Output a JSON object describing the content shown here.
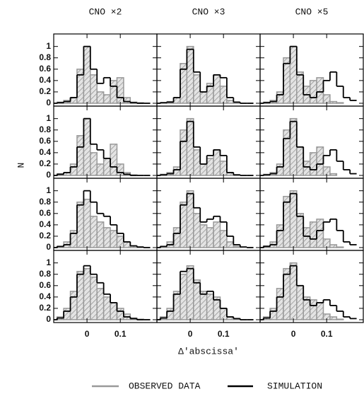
{
  "chart_data": [
    {
      "type": "histogram",
      "title": "CNO ×2",
      "bins": [
        -0.11,
        -0.09,
        -0.07,
        -0.05,
        -0.03,
        -0.01,
        0.01,
        0.03,
        0.05,
        0.07,
        0.09,
        0.11,
        0.13,
        0.15,
        0.17,
        0.19
      ],
      "series": [
        {
          "name": "OBSERVED DATA",
          "color": "#999999",
          "values": [
            0,
            0.02,
            0.05,
            0.1,
            0.6,
            1,
            0.5,
            0.2,
            0.15,
            0.4,
            0.45,
            0.1,
            0.02,
            0.01,
            0
          ]
        },
        {
          "name": "SIMULATION",
          "color": "#000000",
          "values": [
            0,
            0.01,
            0.03,
            0.1,
            0.5,
            1,
            0.6,
            0.35,
            0.45,
            0.3,
            0.1,
            0.03,
            0.01,
            0,
            0
          ]
        }
      ],
      "xlim": [
        -0.1,
        0.21
      ],
      "ylim": [
        -0.05,
        1.22
      ],
      "xticks": [
        0,
        0.1
      ],
      "yticks": [
        0,
        0.2,
        0.4,
        0.6,
        0.8,
        1
      ]
    },
    {
      "type": "histogram",
      "title": "CNO ×3",
      "bins": [
        -0.11,
        -0.09,
        -0.07,
        -0.05,
        -0.03,
        -0.01,
        0.01,
        0.03,
        0.05,
        0.07,
        0.09,
        0.11,
        0.13,
        0.15,
        0.17,
        0.19
      ],
      "series": [
        {
          "name": "OBSERVED DATA",
          "color": "#999999",
          "values": [
            0,
            0.01,
            0.03,
            0.1,
            0.7,
            1,
            0.5,
            0.2,
            0.35,
            0.5,
            0.3,
            0.05,
            0.01,
            0,
            0
          ]
        },
        {
          "name": "SIMULATION",
          "color": "#000000",
          "values": [
            0,
            0.01,
            0.02,
            0.1,
            0.6,
            0.95,
            0.55,
            0.2,
            0.3,
            0.5,
            0.45,
            0.1,
            0.02,
            0,
            0
          ]
        }
      ],
      "xlim": [
        -0.1,
        0.21
      ],
      "ylim": [
        -0.05,
        1.22
      ],
      "xticks": [
        0,
        0.1
      ],
      "yticks": [
        0,
        0.2,
        0.4,
        0.6,
        0.8,
        1
      ]
    },
    {
      "type": "histogram",
      "title": "CNO ×5",
      "bins": [
        -0.11,
        -0.09,
        -0.07,
        -0.05,
        -0.03,
        -0.01,
        0.01,
        0.03,
        0.05,
        0.07,
        0.09,
        0.11,
        0.13,
        0.15,
        0.17,
        0.19
      ],
      "series": [
        {
          "name": "OBSERVED DATA",
          "color": "#999999",
          "values": [
            0,
            0.02,
            0.05,
            0.2,
            0.8,
            1,
            0.55,
            0.3,
            0.4,
            0.45,
            0.15,
            0.03,
            0.01,
            0,
            0
          ]
        },
        {
          "name": "SIMULATION",
          "color": "#000000",
          "values": [
            0,
            0.01,
            0.03,
            0.15,
            0.7,
            1,
            0.5,
            0.15,
            0.1,
            0.2,
            0.4,
            0.55,
            0.3,
            0.1,
            0.05
          ]
        }
      ],
      "xlim": [
        -0.1,
        0.21
      ],
      "ylim": [
        -0.05,
        1.22
      ],
      "xticks": [
        0,
        0.1
      ],
      "yticks": [
        0,
        0.2,
        0.4,
        0.6,
        0.8,
        1
      ]
    },
    {
      "type": "histogram",
      "ylabel": "N",
      "bins": [
        -0.11,
        -0.09,
        -0.07,
        -0.05,
        -0.03,
        -0.01,
        0.01,
        0.03,
        0.05,
        0.07,
        0.09,
        0.11,
        0.13,
        0.15,
        0.17,
        0.19
      ],
      "series": [
        {
          "name": "OBSERVED DATA",
          "color": "#999999",
          "values": [
            0,
            0.03,
            0.05,
            0.2,
            0.7,
            1,
            0.4,
            0.2,
            0.3,
            0.55,
            0.2,
            0.05,
            0.01,
            0,
            0
          ]
        },
        {
          "name": "SIMULATION",
          "color": "#000000",
          "values": [
            0,
            0.02,
            0.05,
            0.15,
            0.5,
            1,
            0.55,
            0.45,
            0.3,
            0.15,
            0.05,
            0.02,
            0,
            0,
            0
          ]
        }
      ],
      "xlim": [
        -0.1,
        0.21
      ],
      "ylim": [
        -0.05,
        1.22
      ],
      "xticks": [
        0,
        0.1
      ],
      "yticks": [
        0,
        0.2,
        0.4,
        0.6,
        0.8,
        1
      ]
    },
    {
      "type": "histogram",
      "bins": [
        -0.11,
        -0.09,
        -0.07,
        -0.05,
        -0.03,
        -0.01,
        0.01,
        0.03,
        0.05,
        0.07,
        0.09,
        0.11,
        0.13,
        0.15,
        0.17,
        0.19
      ],
      "series": [
        {
          "name": "OBSERVED DATA",
          "color": "#999999",
          "values": [
            0,
            0.02,
            0.05,
            0.15,
            0.8,
            1,
            0.45,
            0.2,
            0.3,
            0.45,
            0.25,
            0.05,
            0.01,
            0,
            0
          ]
        },
        {
          "name": "SIMULATION",
          "color": "#000000",
          "values": [
            0,
            0.01,
            0.03,
            0.1,
            0.6,
            0.95,
            0.5,
            0.2,
            0.35,
            0.45,
            0.35,
            0.05,
            0.01,
            0,
            0
          ]
        }
      ],
      "xlim": [
        -0.1,
        0.21
      ],
      "ylim": [
        -0.05,
        1.22
      ],
      "xticks": [
        0,
        0.1
      ],
      "yticks": [
        0,
        0.2,
        0.4,
        0.6,
        0.8,
        1
      ]
    },
    {
      "type": "histogram",
      "bins": [
        -0.11,
        -0.09,
        -0.07,
        -0.05,
        -0.03,
        -0.01,
        0.01,
        0.03,
        0.05,
        0.07,
        0.09,
        0.11,
        0.13,
        0.15,
        0.17,
        0.19
      ],
      "series": [
        {
          "name": "OBSERVED DATA",
          "color": "#999999",
          "values": [
            0,
            0.02,
            0.05,
            0.2,
            0.8,
            1,
            0.5,
            0.25,
            0.4,
            0.5,
            0.15,
            0.03,
            0,
            0,
            0
          ]
        },
        {
          "name": "SIMULATION",
          "color": "#000000",
          "values": [
            0,
            0.01,
            0.03,
            0.15,
            0.65,
            0.95,
            0.5,
            0.15,
            0.1,
            0.2,
            0.35,
            0.45,
            0.25,
            0.1,
            0.03
          ]
        }
      ],
      "xlim": [
        -0.1,
        0.21
      ],
      "ylim": [
        -0.05,
        1.22
      ],
      "xticks": [
        0,
        0.1
      ],
      "yticks": [
        0,
        0.2,
        0.4,
        0.6,
        0.8,
        1
      ]
    },
    {
      "type": "histogram",
      "bins": [
        -0.11,
        -0.09,
        -0.07,
        -0.05,
        -0.03,
        -0.01,
        0.01,
        0.03,
        0.05,
        0.07,
        0.09,
        0.11,
        0.13,
        0.15,
        0.17,
        0.19
      ],
      "series": [
        {
          "name": "OBSERVED DATA",
          "color": "#999999",
          "values": [
            0,
            0.02,
            0.1,
            0.3,
            0.8,
            0.85,
            0.55,
            0.45,
            0.35,
            0.3,
            0.2,
            0.1,
            0.03,
            0.01,
            0
          ]
        },
        {
          "name": "SIMULATION",
          "color": "#000000",
          "values": [
            0,
            0.02,
            0.05,
            0.25,
            0.75,
            1,
            0.8,
            0.6,
            0.55,
            0.4,
            0.25,
            0.1,
            0.03,
            0.01,
            0
          ]
        }
      ],
      "xlim": [
        -0.1,
        0.21
      ],
      "ylim": [
        -0.05,
        1.22
      ],
      "xticks": [
        0,
        0.1
      ],
      "yticks": [
        0,
        0.2,
        0.4,
        0.6,
        0.8,
        1
      ]
    },
    {
      "type": "histogram",
      "bins": [
        -0.11,
        -0.09,
        -0.07,
        -0.05,
        -0.03,
        -0.01,
        0.01,
        0.03,
        0.05,
        0.07,
        0.09,
        0.11,
        0.13,
        0.15,
        0.17,
        0.19
      ],
      "series": [
        {
          "name": "OBSERVED DATA",
          "color": "#999999",
          "values": [
            0,
            0.02,
            0.1,
            0.35,
            0.8,
            1,
            0.6,
            0.4,
            0.35,
            0.45,
            0.3,
            0.1,
            0.02,
            0,
            0
          ]
        },
        {
          "name": "SIMULATION",
          "color": "#000000",
          "values": [
            0,
            0.02,
            0.05,
            0.25,
            0.75,
            0.95,
            0.7,
            0.45,
            0.5,
            0.55,
            0.45,
            0.2,
            0.05,
            0.01,
            0
          ]
        }
      ],
      "xlim": [
        -0.1,
        0.21
      ],
      "ylim": [
        -0.05,
        1.22
      ],
      "xticks": [
        0,
        0.1
      ],
      "yticks": [
        0,
        0.2,
        0.4,
        0.6,
        0.8,
        1
      ]
    },
    {
      "type": "histogram",
      "bins": [
        -0.11,
        -0.09,
        -0.07,
        -0.05,
        -0.03,
        -0.01,
        0.01,
        0.03,
        0.05,
        0.07,
        0.09,
        0.11,
        0.13,
        0.15,
        0.17,
        0.19
      ],
      "series": [
        {
          "name": "OBSERVED DATA",
          "color": "#999999",
          "values": [
            0,
            0.03,
            0.1,
            0.4,
            0.9,
            1,
            0.6,
            0.35,
            0.45,
            0.5,
            0.15,
            0.05,
            0.01,
            0,
            0
          ]
        },
        {
          "name": "SIMULATION",
          "color": "#000000",
          "values": [
            0,
            0.02,
            0.05,
            0.3,
            0.8,
            0.95,
            0.55,
            0.2,
            0.15,
            0.3,
            0.45,
            0.5,
            0.3,
            0.1,
            0.05
          ]
        }
      ],
      "xlim": [
        -0.1,
        0.21
      ],
      "ylim": [
        -0.05,
        1.22
      ],
      "xticks": [
        0,
        0.1
      ],
      "yticks": [
        0,
        0.2,
        0.4,
        0.6,
        0.8,
        1
      ]
    },
    {
      "type": "histogram",
      "bins": [
        -0.11,
        -0.09,
        -0.07,
        -0.05,
        -0.03,
        -0.01,
        0.01,
        0.03,
        0.05,
        0.07,
        0.09,
        0.11,
        0.13,
        0.15,
        0.17,
        0.19
      ],
      "series": [
        {
          "name": "OBSERVED DATA",
          "color": "#999999",
          "values": [
            0,
            0.05,
            0.2,
            0.5,
            0.85,
            0.9,
            0.75,
            0.55,
            0.4,
            0.3,
            0.2,
            0.1,
            0.03,
            0.01,
            0
          ]
        },
        {
          "name": "SIMULATION",
          "color": "#000000",
          "values": [
            0,
            0.03,
            0.15,
            0.4,
            0.8,
            0.95,
            0.8,
            0.65,
            0.45,
            0.3,
            0.15,
            0.05,
            0.02,
            0,
            0
          ]
        }
      ],
      "xlim": [
        -0.1,
        0.21
      ],
      "ylim": [
        -0.05,
        1.22
      ],
      "xticks": [
        0,
        0.1
      ],
      "yticks": [
        0,
        0.2,
        0.4,
        0.6,
        0.8,
        1
      ]
    },
    {
      "type": "histogram",
      "xlabel": "Δ'abscissa'",
      "bins": [
        -0.11,
        -0.09,
        -0.07,
        -0.05,
        -0.03,
        -0.01,
        0.01,
        0.03,
        0.05,
        0.07,
        0.09,
        0.11,
        0.13,
        0.15,
        0.17,
        0.19
      ],
      "series": [
        {
          "name": "OBSERVED DATA",
          "color": "#999999",
          "values": [
            0,
            0.05,
            0.2,
            0.5,
            0.8,
            0.95,
            0.7,
            0.5,
            0.45,
            0.4,
            0.2,
            0.05,
            0.02,
            0,
            0
          ]
        },
        {
          "name": "SIMULATION",
          "color": "#000000",
          "values": [
            0,
            0.03,
            0.15,
            0.45,
            0.85,
            0.9,
            0.65,
            0.45,
            0.5,
            0.35,
            0.2,
            0.05,
            0.02,
            0,
            0
          ]
        }
      ],
      "xlim": [
        -0.1,
        0.21
      ],
      "ylim": [
        -0.05,
        1.22
      ],
      "xticks": [
        0,
        0.1
      ],
      "yticks": [
        0,
        0.2,
        0.4,
        0.6,
        0.8,
        1
      ]
    },
    {
      "type": "histogram",
      "bins": [
        -0.11,
        -0.09,
        -0.07,
        -0.05,
        -0.03,
        -0.01,
        0.01,
        0.03,
        0.05,
        0.07,
        0.09,
        0.11,
        0.13,
        0.15,
        0.17,
        0.19
      ],
      "series": [
        {
          "name": "OBSERVED DATA",
          "color": "#999999",
          "values": [
            0,
            0.05,
            0.2,
            0.55,
            0.9,
            1,
            0.6,
            0.4,
            0.35,
            0.3,
            0.1,
            0.05,
            0.01,
            0,
            0
          ]
        },
        {
          "name": "SIMULATION",
          "color": "#000000",
          "values": [
            0,
            0.03,
            0.15,
            0.4,
            0.8,
            0.95,
            0.6,
            0.35,
            0.25,
            0.3,
            0.35,
            0.25,
            0.15,
            0.05,
            0.02
          ]
        }
      ],
      "xlim": [
        -0.1,
        0.21
      ],
      "ylim": [
        -0.05,
        1.22
      ],
      "xticks": [
        0,
        0.1
      ],
      "yticks": [
        0,
        0.2,
        0.4,
        0.6,
        0.8,
        1
      ]
    }
  ]
}
